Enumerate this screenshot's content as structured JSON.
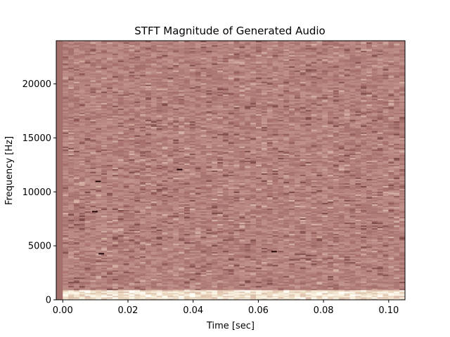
{
  "chart_data": {
    "type": "heatmap",
    "title": "STFT Magnitude of Generated Audio",
    "xlabel": "Time [sec]",
    "ylabel": "Frequency [Hz]",
    "xlim": [
      -0.002,
      0.105
    ],
    "ylim": [
      0,
      24000
    ],
    "x_ticks": [
      0.0,
      0.02,
      0.04,
      0.06,
      0.08,
      0.1
    ],
    "x_tick_labels": [
      "0.00",
      "0.02",
      "0.04",
      "0.06",
      "0.08",
      "0.10"
    ],
    "y_ticks": [
      0,
      5000,
      10000,
      15000,
      20000
    ],
    "y_tick_labels": [
      "0",
      "5000",
      "10000",
      "15000",
      "20000"
    ],
    "grid": false,
    "colormap": "pink",
    "time_bins": 62,
    "frequency_bins": 184,
    "description_low_band": "bright (high magnitude) band below ~1000 Hz",
    "colors": {
      "background": "#a56f6c",
      "low": "#1e0000",
      "mid": "#b78382",
      "high": "#fdf8e6"
    },
    "hotspots": [
      {
        "time": 0.01,
        "frequency": 10900,
        "level": "low"
      },
      {
        "time": 0.035,
        "frequency": 12000,
        "level": "low"
      },
      {
        "time": 0.011,
        "frequency": 4200,
        "level": "low"
      },
      {
        "time": 0.064,
        "frequency": 4400,
        "level": "low"
      },
      {
        "time": 0.009,
        "frequency": 8100,
        "level": "low"
      }
    ]
  }
}
